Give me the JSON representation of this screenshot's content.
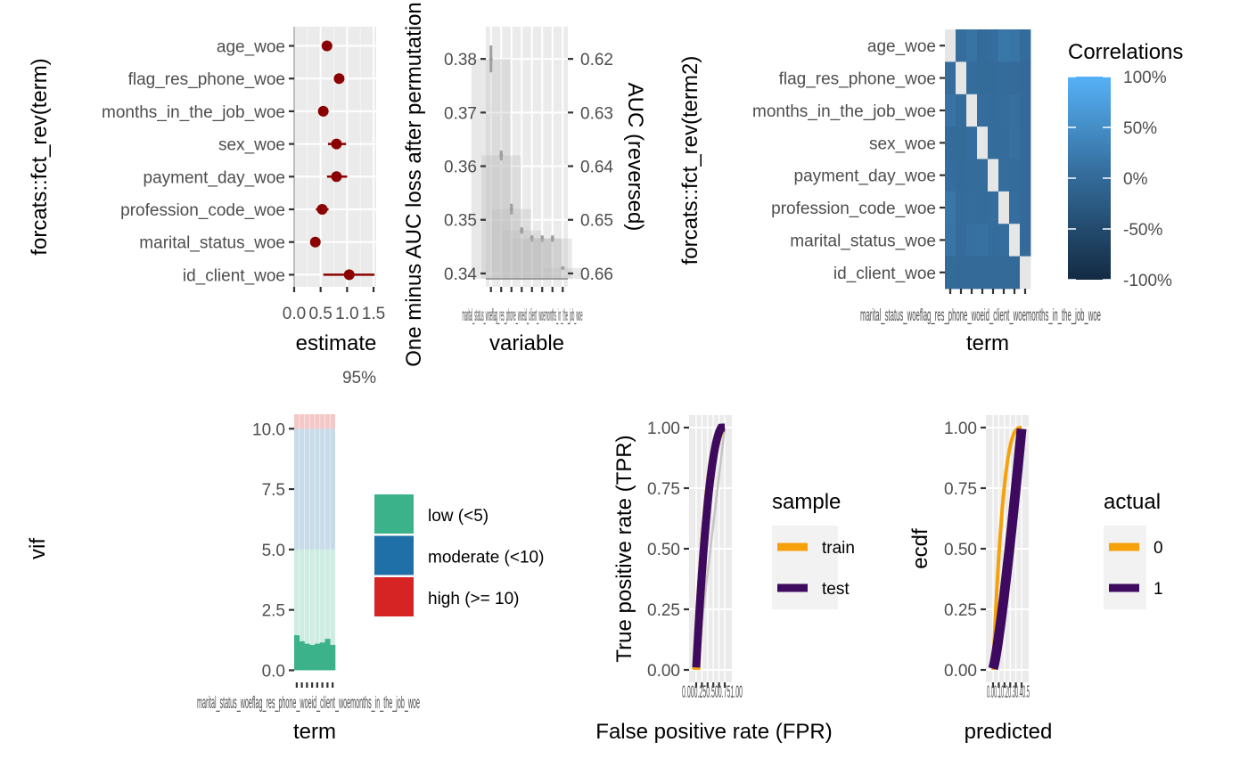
{
  "chart_data": [
    {
      "panel": "coef",
      "type": "scatter",
      "ylabel": "forcats::fct_rev(term)",
      "xlabel": "estimate",
      "caption": "95%",
      "categories": [
        "age_woe",
        "flag_res_phone_woe",
        "months_in_the_job_woe",
        "sex_woe",
        "payment_day_woe",
        "profession_code_woe",
        "marital_status_woe",
        "id_client_woe"
      ],
      "estimate": [
        0.62,
        0.85,
        0.55,
        0.8,
        0.8,
        0.53,
        0.4,
        1.04
      ],
      "conf_low": [
        0.57,
        0.77,
        0.47,
        0.64,
        0.62,
        0.41,
        0.33,
        0.55
      ],
      "conf_high": [
        0.68,
        0.92,
        0.65,
        0.98,
        1.0,
        0.65,
        0.46,
        1.52
      ],
      "xlim": [
        0,
        1.55
      ],
      "xticks": [
        "0.0",
        "0.5",
        "1.0",
        "1.5"
      ],
      "color": "#8b0000"
    },
    {
      "panel": "permutation",
      "type": "bar",
      "xlabel": "variable",
      "ylabel": "One minus AUC loss after permutation",
      "y2label": "AUC (reversed)",
      "ylim": [
        0.3375,
        0.386
      ],
      "yticks": [
        "0.34",
        "0.35",
        "0.36",
        "0.37",
        "0.38"
      ],
      "y2ticks": [
        "0.62",
        "0.63",
        "0.64",
        "0.65",
        "0.66"
      ],
      "xtick_label_overlap": "marital_status_woeflag_res_phone_woeid_client_woemonths_in_the_job_woe",
      "values": [
        0.38,
        0.362,
        0.352,
        0.348,
        0.3465,
        0.3465,
        0.3465,
        0.341
      ],
      "errors": [
        0.0025,
        0.0009,
        0.001,
        0.0006,
        0.0006,
        0.0006,
        0.0006,
        0.0003
      ],
      "baseline": 0.339
    },
    {
      "panel": "correlation",
      "type": "heatmap",
      "ylabel": "forcats::fct_rev(term2)",
      "xlabel": "term",
      "legend_title": "Correlations",
      "legend_labels": [
        "100%",
        "50%",
        "0%",
        "-50%",
        "-100%"
      ],
      "categories": [
        "age_woe",
        "flag_res_phone_woe",
        "months_in_the_job_woe",
        "sex_woe",
        "payment_day_woe",
        "profession_code_woe",
        "marital_status_woe",
        "id_client_woe"
      ],
      "xtick_label_overlap": "marital_status_woeflag_res_phone_woeid_client_woemonths_in_the_job_woe",
      "values": [
        [
          1.0,
          0.05,
          0.12,
          0.02,
          0.06,
          0.18,
          0.14,
          0.01
        ],
        [
          0.05,
          1.0,
          0.03,
          0.01,
          0.02,
          0.04,
          0.02,
          0.0
        ],
        [
          0.12,
          0.03,
          1.0,
          0.06,
          0.03,
          0.05,
          0.08,
          0.0
        ],
        [
          0.02,
          0.01,
          0.06,
          1.0,
          0.04,
          0.03,
          0.1,
          0.0
        ],
        [
          0.06,
          0.02,
          0.03,
          0.04,
          1.0,
          0.05,
          0.03,
          0.0
        ],
        [
          0.18,
          0.04,
          0.05,
          0.03,
          0.05,
          1.0,
          0.06,
          0.0
        ],
        [
          0.14,
          0.02,
          0.08,
          0.1,
          0.03,
          0.06,
          1.0,
          0.0
        ],
        [
          0.01,
          0.0,
          0.0,
          0.0,
          0.0,
          0.0,
          0.0,
          1.0
        ]
      ]
    },
    {
      "panel": "vif",
      "type": "bar",
      "ylabel": "vif",
      "xlabel": "term",
      "ylim": [
        -0.5,
        10.6
      ],
      "yticks": [
        "0.0",
        "2.5",
        "5.0",
        "7.5",
        "10.0"
      ],
      "xtick_label_overlap": "marital_status_woeflag_res_phone_woeid_client_woemonths_in_the_job_woe",
      "values": [
        1.45,
        1.2,
        1.1,
        1.05,
        1.1,
        1.15,
        1.3,
        1.05
      ],
      "bands": [
        {
          "label": "low (<5)",
          "from": 0,
          "to": 5,
          "color": "#3bb28a"
        },
        {
          "label": "moderate (<10)",
          "from": 5,
          "to": 10,
          "color": "#1f6fa9"
        },
        {
          "label": "high (>= 10)",
          "from": 10,
          "to": 10.6,
          "color": "#d62424"
        }
      ],
      "legend": [
        "low (<5)",
        "moderate (<10)",
        "high (>= 10)"
      ]
    },
    {
      "panel": "roc",
      "type": "line",
      "xlabel": "False positive rate (FPR)",
      "ylabel": "True positive rate (TPR)",
      "yticks": [
        "0.00",
        "0.25",
        "0.50",
        "0.75",
        "1.00"
      ],
      "xtick_label_overlap": "0.000.250.500.751.00",
      "legend_title": "sample",
      "series": [
        {
          "name": "train",
          "color": "#f7a10a"
        },
        {
          "name": "test",
          "color": "#3d0a5f"
        }
      ]
    },
    {
      "panel": "ecdf",
      "type": "line",
      "xlabel": "predicted",
      "ylabel": "ecdf",
      "yticks": [
        "0.00",
        "0.25",
        "0.50",
        "0.75",
        "1.00"
      ],
      "xtick_label_overlap": "0.00.10.20.30.40.5",
      "legend_title": "actual",
      "series": [
        {
          "name": "0",
          "color": "#f7a10a"
        },
        {
          "name": "1",
          "color": "#3d0a5f"
        }
      ]
    }
  ]
}
